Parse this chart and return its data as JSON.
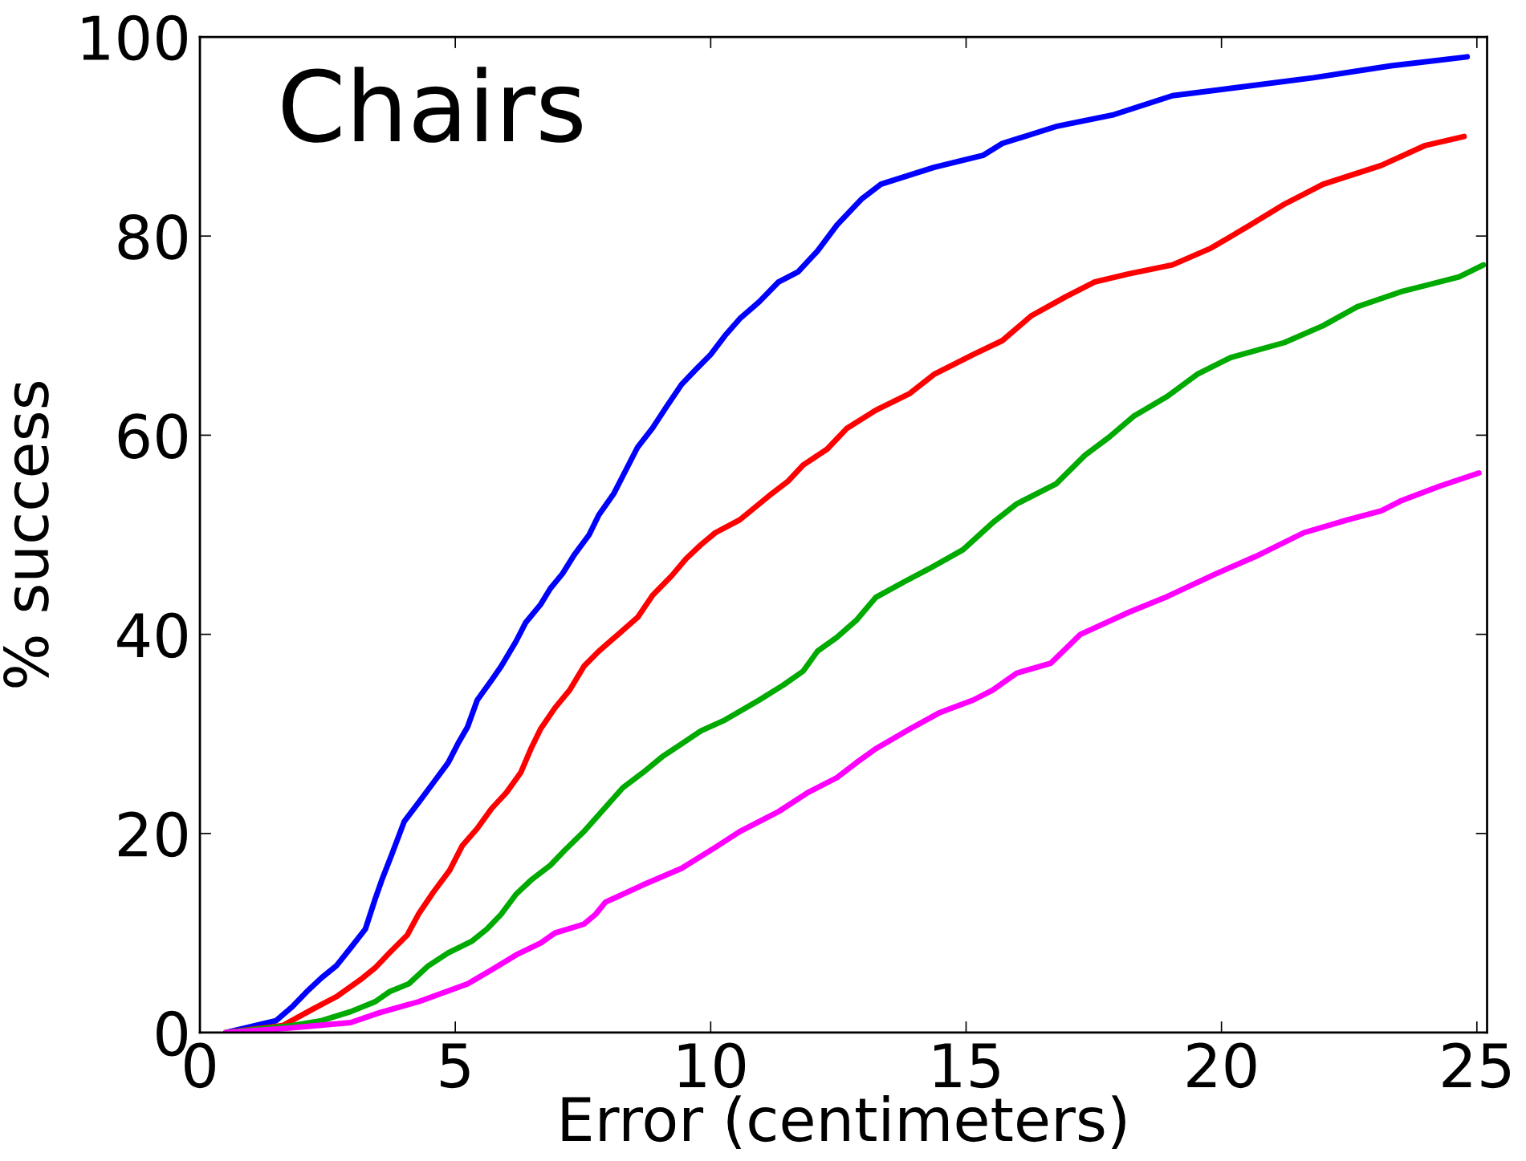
{
  "chart_data": {
    "type": "line",
    "title": "Chairs",
    "xlabel": "Error (centimeters)",
    "ylabel": "% success",
    "xlim": [
      0,
      25.2
    ],
    "ylim": [
      0,
      100
    ],
    "xticks": [
      0,
      5,
      10,
      15,
      20,
      25
    ],
    "yticks": [
      0,
      20,
      40,
      60,
      80,
      100
    ],
    "grid": false,
    "marker": "none",
    "line_style": "solid",
    "series": [
      {
        "color": "#0000ff",
        "x": [
          0.51,
          1.49,
          1.81,
          2.09,
          2.38,
          2.67,
          2.95,
          3.24,
          3.43,
          3.56,
          3.75,
          4.0,
          4.28,
          4.57,
          4.86,
          5.05,
          5.24,
          5.43,
          5.71,
          5.9,
          6.19,
          6.38,
          6.67,
          6.86,
          7.1,
          7.33,
          7.62,
          7.81,
          8.1,
          8.28,
          8.57,
          8.86,
          9.14,
          9.43,
          9.71,
          10.0,
          10.28,
          10.57,
          10.95,
          11.33,
          11.71,
          12.09,
          12.47,
          12.95,
          13.33,
          14.37,
          15.33,
          15.71,
          16.76,
          17.9,
          19.04,
          20.28,
          21.8,
          23.32,
          24.81
        ],
        "values": [
          0,
          1.2,
          2.6,
          4.1,
          5.5,
          6.7,
          8.5,
          10.4,
          13.4,
          15.3,
          17.8,
          21.2,
          23.1,
          25.1,
          27.1,
          29.0,
          30.7,
          33.4,
          35.4,
          36.8,
          39.3,
          41.2,
          43.0,
          44.6,
          46.1,
          48.0,
          50.0,
          52.0,
          54.1,
          55.9,
          58.8,
          60.7,
          62.9,
          65.1,
          66.6,
          68.1,
          70.0,
          71.7,
          73.4,
          75.4,
          76.4,
          78.5,
          81.1,
          83.7,
          85.2,
          86.9,
          88.1,
          89.3,
          91.0,
          92.2,
          94.1,
          94.9,
          95.9,
          97.1,
          98.0
        ]
      },
      {
        "color": "#ff0000",
        "x": [
          0.51,
          1.62,
          2.19,
          2.67,
          3.14,
          3.43,
          3.71,
          4.06,
          4.28,
          4.57,
          4.89,
          5.14,
          5.43,
          5.71,
          6.0,
          6.28,
          6.48,
          6.67,
          6.95,
          7.24,
          7.52,
          7.81,
          8.19,
          8.57,
          8.86,
          9.24,
          9.52,
          9.81,
          10.09,
          10.57,
          11.14,
          11.52,
          11.81,
          12.28,
          12.67,
          13.23,
          13.9,
          14.37,
          15.14,
          15.71,
          16.28,
          16.95,
          17.52,
          18.18,
          19.04,
          19.8,
          20.56,
          21.23,
          21.99,
          23.13,
          23.99,
          24.75
        ],
        "values": [
          0,
          0.7,
          2.3,
          3.6,
          5.3,
          6.5,
          8.0,
          9.8,
          11.9,
          14.1,
          16.3,
          18.8,
          20.5,
          22.5,
          24.1,
          26.1,
          28.5,
          30.5,
          32.6,
          34.4,
          36.8,
          38.3,
          40.0,
          41.7,
          43.9,
          45.9,
          47.6,
          49.0,
          50.2,
          51.5,
          53.9,
          55.4,
          57.0,
          58.6,
          60.7,
          62.5,
          64.2,
          66.1,
          68.1,
          69.5,
          72.0,
          73.9,
          75.4,
          76.2,
          77.1,
          78.8,
          81.1,
          83.2,
          85.2,
          87.1,
          89.1,
          90.0
        ]
      },
      {
        "color": "#00aa00",
        "x": [
          0.51,
          1.81,
          2.38,
          2.95,
          3.43,
          3.71,
          4.09,
          4.47,
          4.86,
          5.33,
          5.62,
          5.9,
          6.19,
          6.48,
          6.86,
          7.14,
          7.52,
          7.9,
          8.28,
          8.67,
          9.05,
          9.43,
          9.81,
          10.28,
          10.95,
          11.42,
          11.81,
          12.09,
          12.47,
          12.85,
          13.23,
          13.8,
          14.28,
          14.94,
          15.52,
          15.99,
          16.76,
          17.33,
          17.8,
          18.28,
          18.94,
          19.52,
          20.18,
          21.23,
          21.99,
          22.66,
          23.51,
          24.65,
          25.13
        ],
        "values": [
          0,
          0.7,
          1.2,
          2.1,
          3.1,
          4.1,
          4.9,
          6.7,
          8.0,
          9.2,
          10.4,
          11.9,
          13.9,
          15.3,
          16.8,
          18.3,
          20.2,
          22.4,
          24.6,
          26.1,
          27.7,
          29.0,
          30.3,
          31.4,
          33.4,
          34.9,
          36.3,
          38.3,
          39.7,
          41.4,
          43.7,
          45.3,
          46.6,
          48.5,
          51.2,
          53.1,
          55.1,
          58.0,
          59.8,
          61.9,
          63.9,
          66.1,
          67.8,
          69.3,
          71.0,
          72.9,
          74.4,
          75.9,
          77.1
        ]
      },
      {
        "color": "#ff00ff",
        "x": [
          0.51,
          1.62,
          2.95,
          3.52,
          4.28,
          5.24,
          5.71,
          6.19,
          6.67,
          6.95,
          7.52,
          7.75,
          7.94,
          8.66,
          9.43,
          10.09,
          10.57,
          11.33,
          11.9,
          12.47,
          12.85,
          13.23,
          13.9,
          14.47,
          15.14,
          15.52,
          15.99,
          16.66,
          17.24,
          18.18,
          18.94,
          19.9,
          20.66,
          21.61,
          22.47,
          23.13,
          23.51,
          24.28,
          25.04
        ],
        "values": [
          0,
          0.4,
          1.0,
          2.0,
          3.1,
          4.9,
          6.3,
          7.8,
          9.0,
          10.0,
          10.9,
          11.9,
          13.1,
          14.8,
          16.5,
          18.6,
          20.2,
          22.2,
          24.1,
          25.6,
          27.1,
          28.5,
          30.5,
          32.1,
          33.4,
          34.4,
          36.1,
          37.1,
          40.0,
          42.2,
          43.8,
          46.1,
          47.8,
          50.2,
          51.5,
          52.4,
          53.4,
          54.9,
          56.2
        ]
      }
    ]
  }
}
